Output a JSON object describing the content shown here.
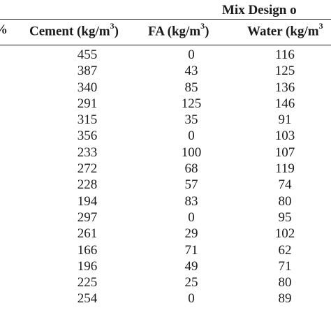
{
  "table": {
    "group_header": "Mix Design o",
    "headers": {
      "first_fragment": "%",
      "cement": "Cement (kg/m",
      "cement_sup": "3",
      "cement_close": ")",
      "fa": "FA (kg/m",
      "fa_sup": "3",
      "fa_close": ")",
      "water": "Water (kg/m",
      "water_sup": "3"
    },
    "rows": [
      {
        "cement": "455",
        "fa": "0",
        "water": "116"
      },
      {
        "cement": "387",
        "fa": "43",
        "water": "125"
      },
      {
        "cement": "340",
        "fa": "85",
        "water": "136"
      },
      {
        "cement": "291",
        "fa": "125",
        "water": "146"
      },
      {
        "cement": "315",
        "fa": "35",
        "water": "91"
      },
      {
        "cement": "356",
        "fa": "0",
        "water": "103"
      },
      {
        "cement": "233",
        "fa": "100",
        "water": "107"
      },
      {
        "cement": "272",
        "fa": "68",
        "water": "119"
      },
      {
        "cement": "228",
        "fa": "57",
        "water": "74"
      },
      {
        "cement": "194",
        "fa": "83",
        "water": "80"
      },
      {
        "cement": "297",
        "fa": "0",
        "water": "95"
      },
      {
        "cement": "261",
        "fa": "29",
        "water": "102"
      },
      {
        "cement": "166",
        "fa": "71",
        "water": "62"
      },
      {
        "cement": "196",
        "fa": "49",
        "water": "71"
      },
      {
        "cement": "225",
        "fa": "25",
        "water": "80"
      },
      {
        "cement": "254",
        "fa": "0",
        "water": "89"
      }
    ]
  }
}
